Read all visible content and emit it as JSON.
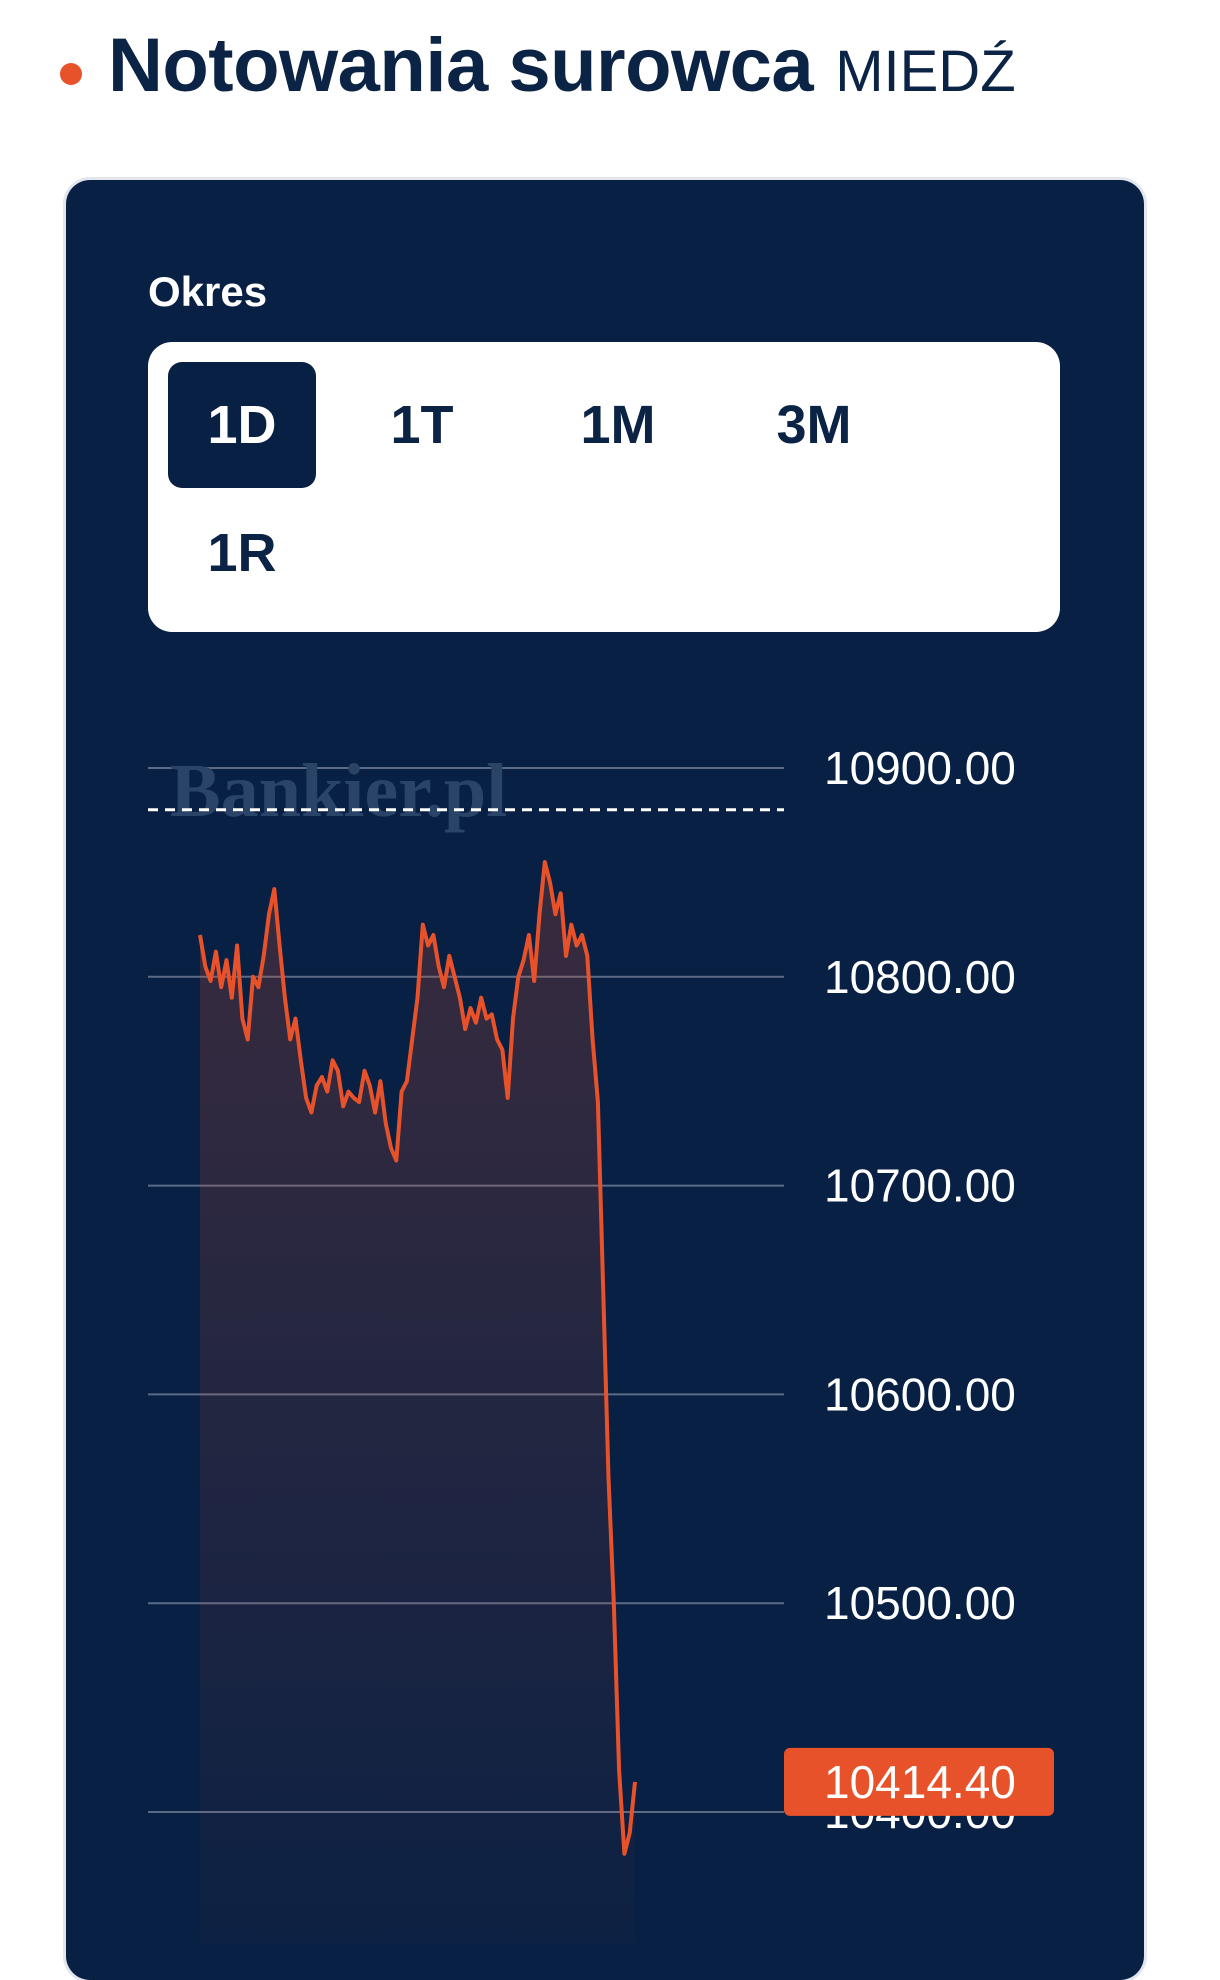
{
  "header": {
    "title": "Notowania surowca",
    "subtitle": "MIEDŹ"
  },
  "period": {
    "label": "Okres",
    "options": [
      "1D",
      "1T",
      "1M",
      "3M",
      "1R"
    ],
    "selected": "1D"
  },
  "watermark": "Bankier.pl",
  "colors": {
    "navy": "#082044",
    "accent": "#e8522a",
    "grid": "#5b6b86"
  },
  "chart_data": {
    "type": "area",
    "ylim": [
      10370,
      10920
    ],
    "yticks": [
      10400,
      10500,
      10600,
      10700,
      10800,
      10900
    ],
    "ytick_labels": [
      "10400.00",
      "10500.00",
      "10600.00",
      "10700.00",
      "10800.00",
      "10900.00"
    ],
    "reference_line": 10880,
    "current_value": 10414.4,
    "current_label": "10414.40",
    "series": [
      {
        "values": [
          10820,
          10805,
          10798,
          10812,
          10795,
          10808,
          10790,
          10815,
          10780,
          10770,
          10800,
          10795,
          10810,
          10830,
          10842,
          10815,
          10790,
          10770,
          10780,
          10760,
          10742,
          10735,
          10748,
          10752,
          10745,
          10760,
          10755,
          10738,
          10745,
          10742,
          10740,
          10755,
          10748,
          10735,
          10750,
          10730,
          10718,
          10712,
          10745,
          10750,
          10770,
          10790,
          10825,
          10815,
          10820,
          10805,
          10795,
          10810,
          10800,
          10790,
          10775,
          10785,
          10778,
          10790,
          10780,
          10782,
          10770,
          10765,
          10742,
          10780,
          10800,
          10808,
          10820,
          10798,
          10830,
          10855,
          10845,
          10830,
          10840,
          10810,
          10825,
          10815,
          10820,
          10810,
          10770,
          10740,
          10650,
          10560,
          10500,
          10420,
          10380,
          10390,
          10414.4
        ]
      }
    ]
  }
}
